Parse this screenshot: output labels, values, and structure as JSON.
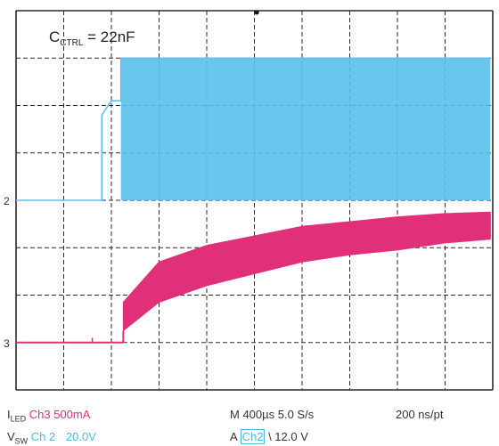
{
  "colors": {
    "grid": "#2b2b2b",
    "ch2": "#5bc0eb",
    "ch3": "#e0307a",
    "text": "#333333"
  },
  "chart_data": {
    "type": "line",
    "title": "C_CTRL = 22nF",
    "annotation": {
      "prefix": "C",
      "subscript": "CTRL",
      "suffix": " = 22nF"
    },
    "x_divisions": 10,
    "y_divisions": 8,
    "grid": true,
    "channel_markers": [
      {
        "label": "2",
        "div": 4.0
      },
      {
        "label": "3",
        "div": 1.0
      }
    ],
    "series": [
      {
        "name": "Ch2",
        "signal": "V_SW",
        "note": "switching envelope",
        "points_div": [
          [
            0,
            4.0
          ],
          [
            1.8,
            4.0
          ],
          [
            1.8,
            5.8
          ],
          [
            2.0,
            6.1
          ],
          [
            2.2,
            6.1
          ],
          [
            2.2,
            7.0
          ],
          [
            9.95,
            7.0
          ]
        ],
        "band": {
          "x_start": 2.2,
          "x_end": 9.95,
          "low": 4.0,
          "high": 7.0
        }
      },
      {
        "name": "Ch3",
        "signal": "I_LED",
        "baseline_div": 1.0,
        "step_x_div": 2.25,
        "upper_div": [
          [
            2.25,
            1.85
          ],
          [
            3,
            2.7
          ],
          [
            4,
            3.05
          ],
          [
            5,
            3.25
          ],
          [
            6,
            3.45
          ],
          [
            7,
            3.55
          ],
          [
            8,
            3.65
          ],
          [
            9,
            3.72
          ],
          [
            9.95,
            3.75
          ]
        ],
        "lower_div": [
          [
            2.25,
            1.25
          ],
          [
            3,
            1.85
          ],
          [
            4,
            2.2
          ],
          [
            5,
            2.45
          ],
          [
            6,
            2.7
          ],
          [
            7,
            2.85
          ],
          [
            8,
            2.95
          ],
          [
            9,
            3.1
          ],
          [
            9.95,
            3.18
          ]
        ]
      }
    ]
  },
  "footer": {
    "iled_prefix": "I",
    "iled_sub": "LED",
    "ch3_scale": "Ch3 500mA",
    "vsw_prefix": "V",
    "vsw_sub": "SW",
    "ch2_label": "Ch 2",
    "ch2_scale": "20.0V",
    "timebase": "M 400µs 5.0 S/s",
    "resolution": "200 ns/pt",
    "trigger_prefix": "A",
    "trigger_channel": "Ch2",
    "trigger_level": "\\ 12.0 V"
  }
}
